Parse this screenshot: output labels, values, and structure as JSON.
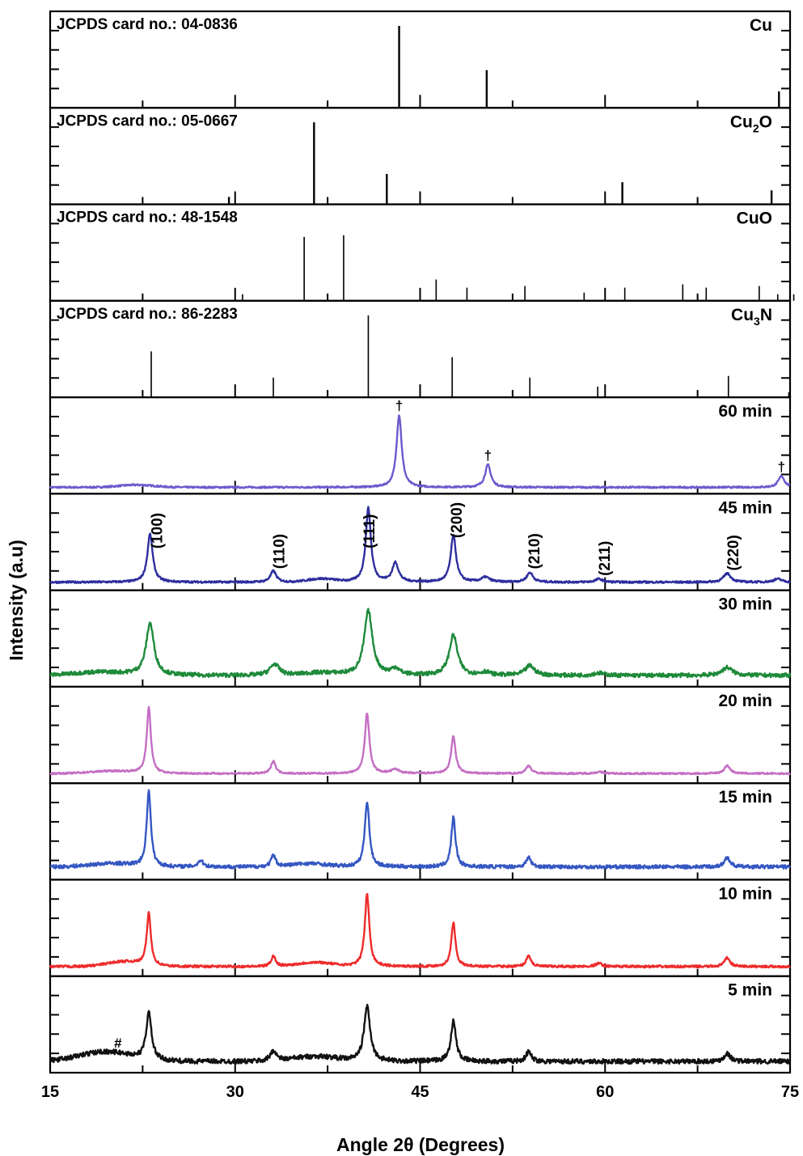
{
  "chart_data": {
    "type": "line",
    "xlabel": "Angle 2θ (Degrees)",
    "ylabel": "Intensity (a.u)",
    "xlim": [
      15,
      75
    ],
    "xticks": [
      "15",
      "30",
      "45",
      "60",
      "75"
    ],
    "grid": false,
    "colors": {
      "axis": "#000000",
      "ref": "#000000",
      "60min": "#6a5acd",
      "45min": "#2e2e9e",
      "30min": "#1e8a3a",
      "20min": "#c46ec4",
      "15min": "#3557c2",
      "10min": "#ee2b2b",
      "5min": "#111111"
    },
    "references": [
      {
        "caption": "JCPDS card no.: 04-0836",
        "phase": "Cu",
        "phase_main": "Cu",
        "phase_sub": "",
        "phase_tail": "",
        "peaks": [
          [
            43.3,
            100
          ],
          [
            50.4,
            46
          ],
          [
            74.1,
            20
          ]
        ]
      },
      {
        "caption": "JCPDS card no.: 05-0667",
        "phase": "Cu2O",
        "phase_main": "Cu",
        "phase_sub": "2",
        "phase_tail": "O",
        "peaks": [
          [
            29.5,
            9
          ],
          [
            36.4,
            100
          ],
          [
            42.3,
            37
          ],
          [
            61.4,
            27
          ],
          [
            73.5,
            17
          ]
        ]
      },
      {
        "caption": "JCPDS card no.: 48-1548",
        "phase": "CuO",
        "phase_main": "CuO",
        "phase_sub": "",
        "phase_tail": "",
        "peaks": [
          [
            30.6,
            8
          ],
          [
            35.6,
            78
          ],
          [
            38.8,
            80
          ],
          [
            46.3,
            26
          ],
          [
            48.8,
            16
          ],
          [
            53.5,
            18
          ],
          [
            58.3,
            10
          ],
          [
            61.6,
            16
          ],
          [
            66.3,
            20
          ],
          [
            68.2,
            16
          ],
          [
            72.5,
            18
          ],
          [
            74.0,
            8
          ],
          [
            75.3,
            8
          ]
        ]
      },
      {
        "caption": "JCPDS card no.: 86-2283",
        "phase": "Cu3N",
        "phase_main": "Cu",
        "phase_sub": "3",
        "phase_tail": "N",
        "peaks": [
          [
            23.2,
            56
          ],
          [
            33.1,
            24
          ],
          [
            40.8,
            100
          ],
          [
            47.6,
            49
          ],
          [
            53.9,
            24
          ],
          [
            59.4,
            13
          ],
          [
            70.0,
            26
          ],
          [
            74.9,
            6
          ]
        ]
      }
    ],
    "series": [
      {
        "name": "60 min",
        "key": "60min",
        "base": 8,
        "noise": 1.0,
        "hump": [
          [
            22,
            3,
            2
          ]
        ],
        "peaks": [
          [
            43.3,
            90,
            0.25
          ],
          [
            50.5,
            28,
            0.28
          ],
          [
            74.3,
            14,
            0.3
          ]
        ]
      },
      {
        "name": "45 min",
        "key": "45min",
        "base": 10,
        "noise": 1.2,
        "hump": [
          [
            37,
            4,
            1.5
          ]
        ],
        "peaks": [
          [
            23.1,
            60,
            0.26
          ],
          [
            33.1,
            14,
            0.28
          ],
          [
            40.8,
            92,
            0.25
          ],
          [
            43.0,
            24,
            0.3
          ],
          [
            47.7,
            58,
            0.26
          ],
          [
            50.3,
            6,
            0.4
          ],
          [
            53.9,
            12,
            0.3
          ],
          [
            59.5,
            4,
            0.35
          ],
          [
            69.9,
            11,
            0.35
          ],
          [
            74.0,
            4,
            0.4
          ]
        ]
      },
      {
        "name": "30 min",
        "key": "30min",
        "base": 14,
        "noise": 2.5,
        "hump": [
          [
            19,
            4,
            3
          ],
          [
            37,
            3,
            2
          ]
        ],
        "peaks": [
          [
            23.1,
            65,
            0.38
          ],
          [
            33.2,
            14,
            0.45
          ],
          [
            40.8,
            80,
            0.4
          ],
          [
            43.0,
            8,
            0.4
          ],
          [
            47.7,
            50,
            0.4
          ],
          [
            50.3,
            4,
            0.4
          ],
          [
            53.9,
            12,
            0.45
          ],
          [
            59.5,
            3,
            0.5
          ],
          [
            69.9,
            10,
            0.5
          ]
        ]
      },
      {
        "name": "20 min",
        "key": "20min",
        "base": 12,
        "noise": 1.0,
        "hump": [
          [
            20,
            3,
            2.5
          ]
        ],
        "peaks": [
          [
            23.0,
            82,
            0.2
          ],
          [
            33.1,
            16,
            0.22
          ],
          [
            40.7,
            75,
            0.22
          ],
          [
            43.0,
            5,
            0.4
          ],
          [
            47.7,
            46,
            0.22
          ],
          [
            53.8,
            10,
            0.25
          ],
          [
            59.5,
            2,
            0.4
          ],
          [
            69.9,
            10,
            0.28
          ]
        ]
      },
      {
        "name": "15 min",
        "key": "15min",
        "base": 16,
        "noise": 2.2,
        "hump": [
          [
            20,
            4,
            2.5
          ],
          [
            36,
            4,
            2
          ]
        ],
        "peaks": [
          [
            23.0,
            95,
            0.2
          ],
          [
            27.2,
            8,
            0.25
          ],
          [
            33.1,
            14,
            0.22
          ],
          [
            40.7,
            82,
            0.22
          ],
          [
            47.7,
            62,
            0.2
          ],
          [
            53.8,
            12,
            0.22
          ],
          [
            69.9,
            12,
            0.26
          ]
        ]
      },
      {
        "name": "10 min",
        "key": "10min",
        "base": 12,
        "noise": 1.4,
        "hump": [
          [
            21,
            6,
            2
          ],
          [
            36.5,
            5,
            2
          ]
        ],
        "peaks": [
          [
            23.0,
            65,
            0.2
          ],
          [
            33.1,
            13,
            0.22
          ],
          [
            40.7,
            90,
            0.22
          ],
          [
            47.7,
            55,
            0.2
          ],
          [
            53.8,
            14,
            0.22
          ],
          [
            59.5,
            4,
            0.3
          ],
          [
            69.9,
            11,
            0.26
          ]
        ]
      },
      {
        "name": "5 min",
        "key": "5min",
        "base": 14,
        "noise": 3.0,
        "hump": [
          [
            19.5,
            12,
            3
          ],
          [
            36.5,
            6,
            2.5
          ]
        ],
        "peaks": [
          [
            23.0,
            58,
            0.26
          ],
          [
            33.1,
            13,
            0.28
          ],
          [
            40.7,
            68,
            0.3
          ],
          [
            47.7,
            50,
            0.25
          ],
          [
            53.8,
            12,
            0.26
          ],
          [
            69.9,
            10,
            0.3
          ]
        ]
      }
    ],
    "hkl_labels": [
      {
        "text": "(100)",
        "x": 23.3
      },
      {
        "text": "(110)",
        "x": 33.2
      },
      {
        "text": "(111)",
        "x": 40.5
      },
      {
        "text": "(200)",
        "x": 47.6
      },
      {
        "text": "(210)",
        "x": 53.9
      },
      {
        "text": "(211)",
        "x": 59.6
      },
      {
        "text": "(220)",
        "x": 70.0
      }
    ],
    "markers": [
      {
        "text": "†",
        "series": "60 min",
        "x": 43.3
      },
      {
        "text": "†",
        "series": "60 min",
        "x": 50.5
      },
      {
        "text": "†",
        "series": "60 min",
        "x": 74.3
      },
      {
        "text": "#",
        "series": "5 min",
        "x": 20.5
      }
    ]
  }
}
